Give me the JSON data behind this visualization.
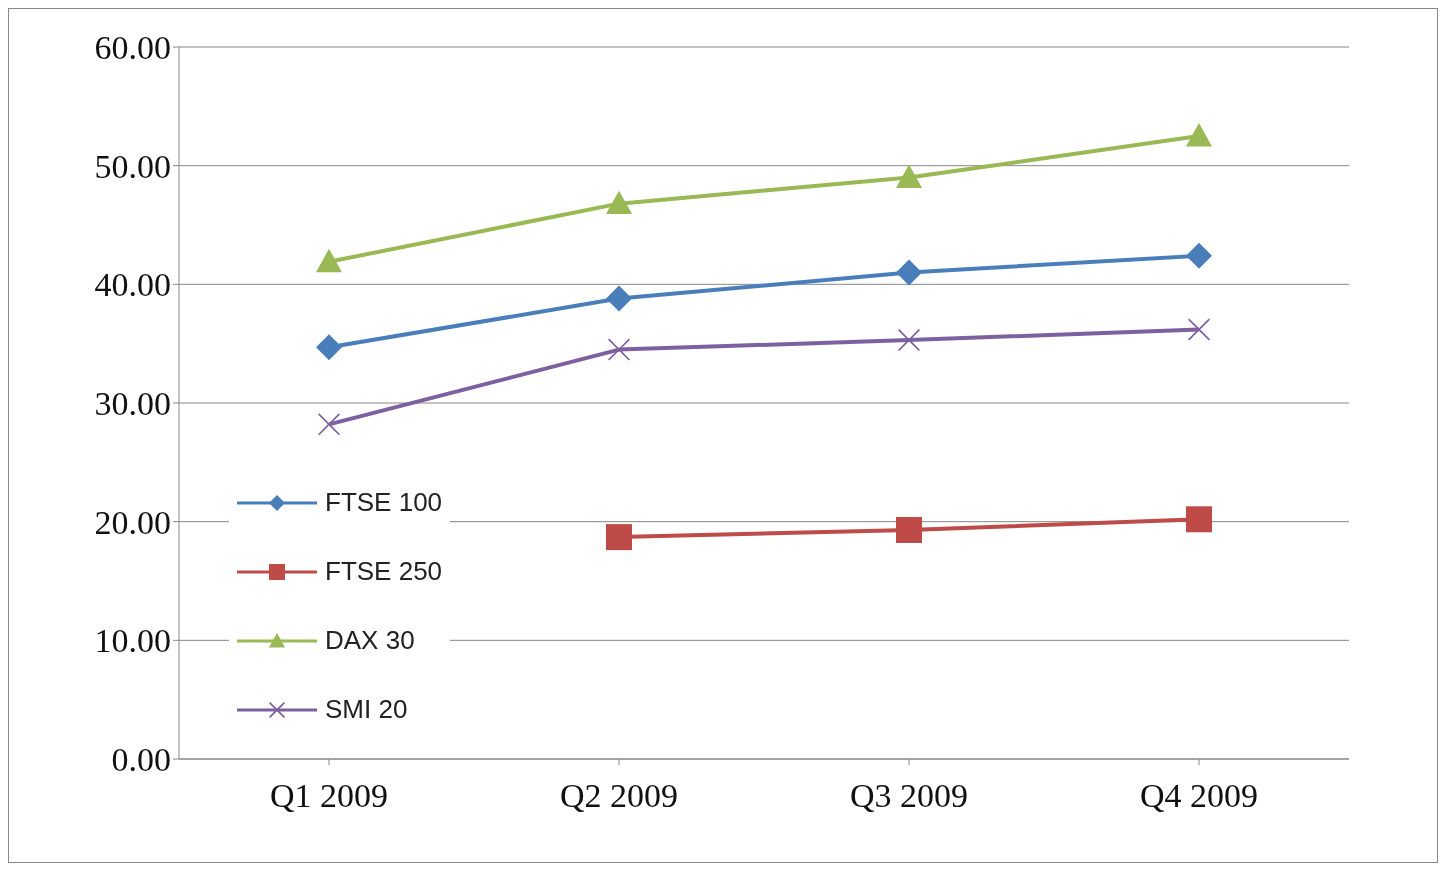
{
  "chart_data": {
    "type": "line",
    "categories": [
      "Q1 2009",
      "Q2 2009",
      "Q3 2009",
      "Q4 2009"
    ],
    "series": [
      {
        "name": "FTSE 100",
        "color": "#4a7ebb",
        "marker": "diamond",
        "values": [
          34.7,
          38.8,
          41.0,
          42.4
        ]
      },
      {
        "name": "FTSE 250",
        "color": "#be4b48",
        "marker": "square",
        "values": [
          null,
          18.7,
          19.3,
          20.2
        ]
      },
      {
        "name": "DAX 30",
        "color": "#98b954",
        "marker": "triangle",
        "values": [
          41.9,
          46.8,
          49.0,
          52.5
        ]
      },
      {
        "name": "SMI 20",
        "color": "#7d60a0",
        "marker": "cross",
        "values": [
          28.2,
          34.5,
          35.3,
          36.2
        ]
      }
    ],
    "ylim": [
      0,
      60
    ],
    "yticks": [
      {
        "value": 0,
        "label": "0.00"
      },
      {
        "value": 10,
        "label": "10.00"
      },
      {
        "value": 20,
        "label": "20.00"
      },
      {
        "value": 30,
        "label": "30.00"
      },
      {
        "value": 40,
        "label": "40.00"
      },
      {
        "value": 50,
        "label": "50.00"
      },
      {
        "value": 60,
        "label": "60.00"
      }
    ],
    "grid": "y",
    "legend": "bottom left",
    "line_style": "solid"
  }
}
